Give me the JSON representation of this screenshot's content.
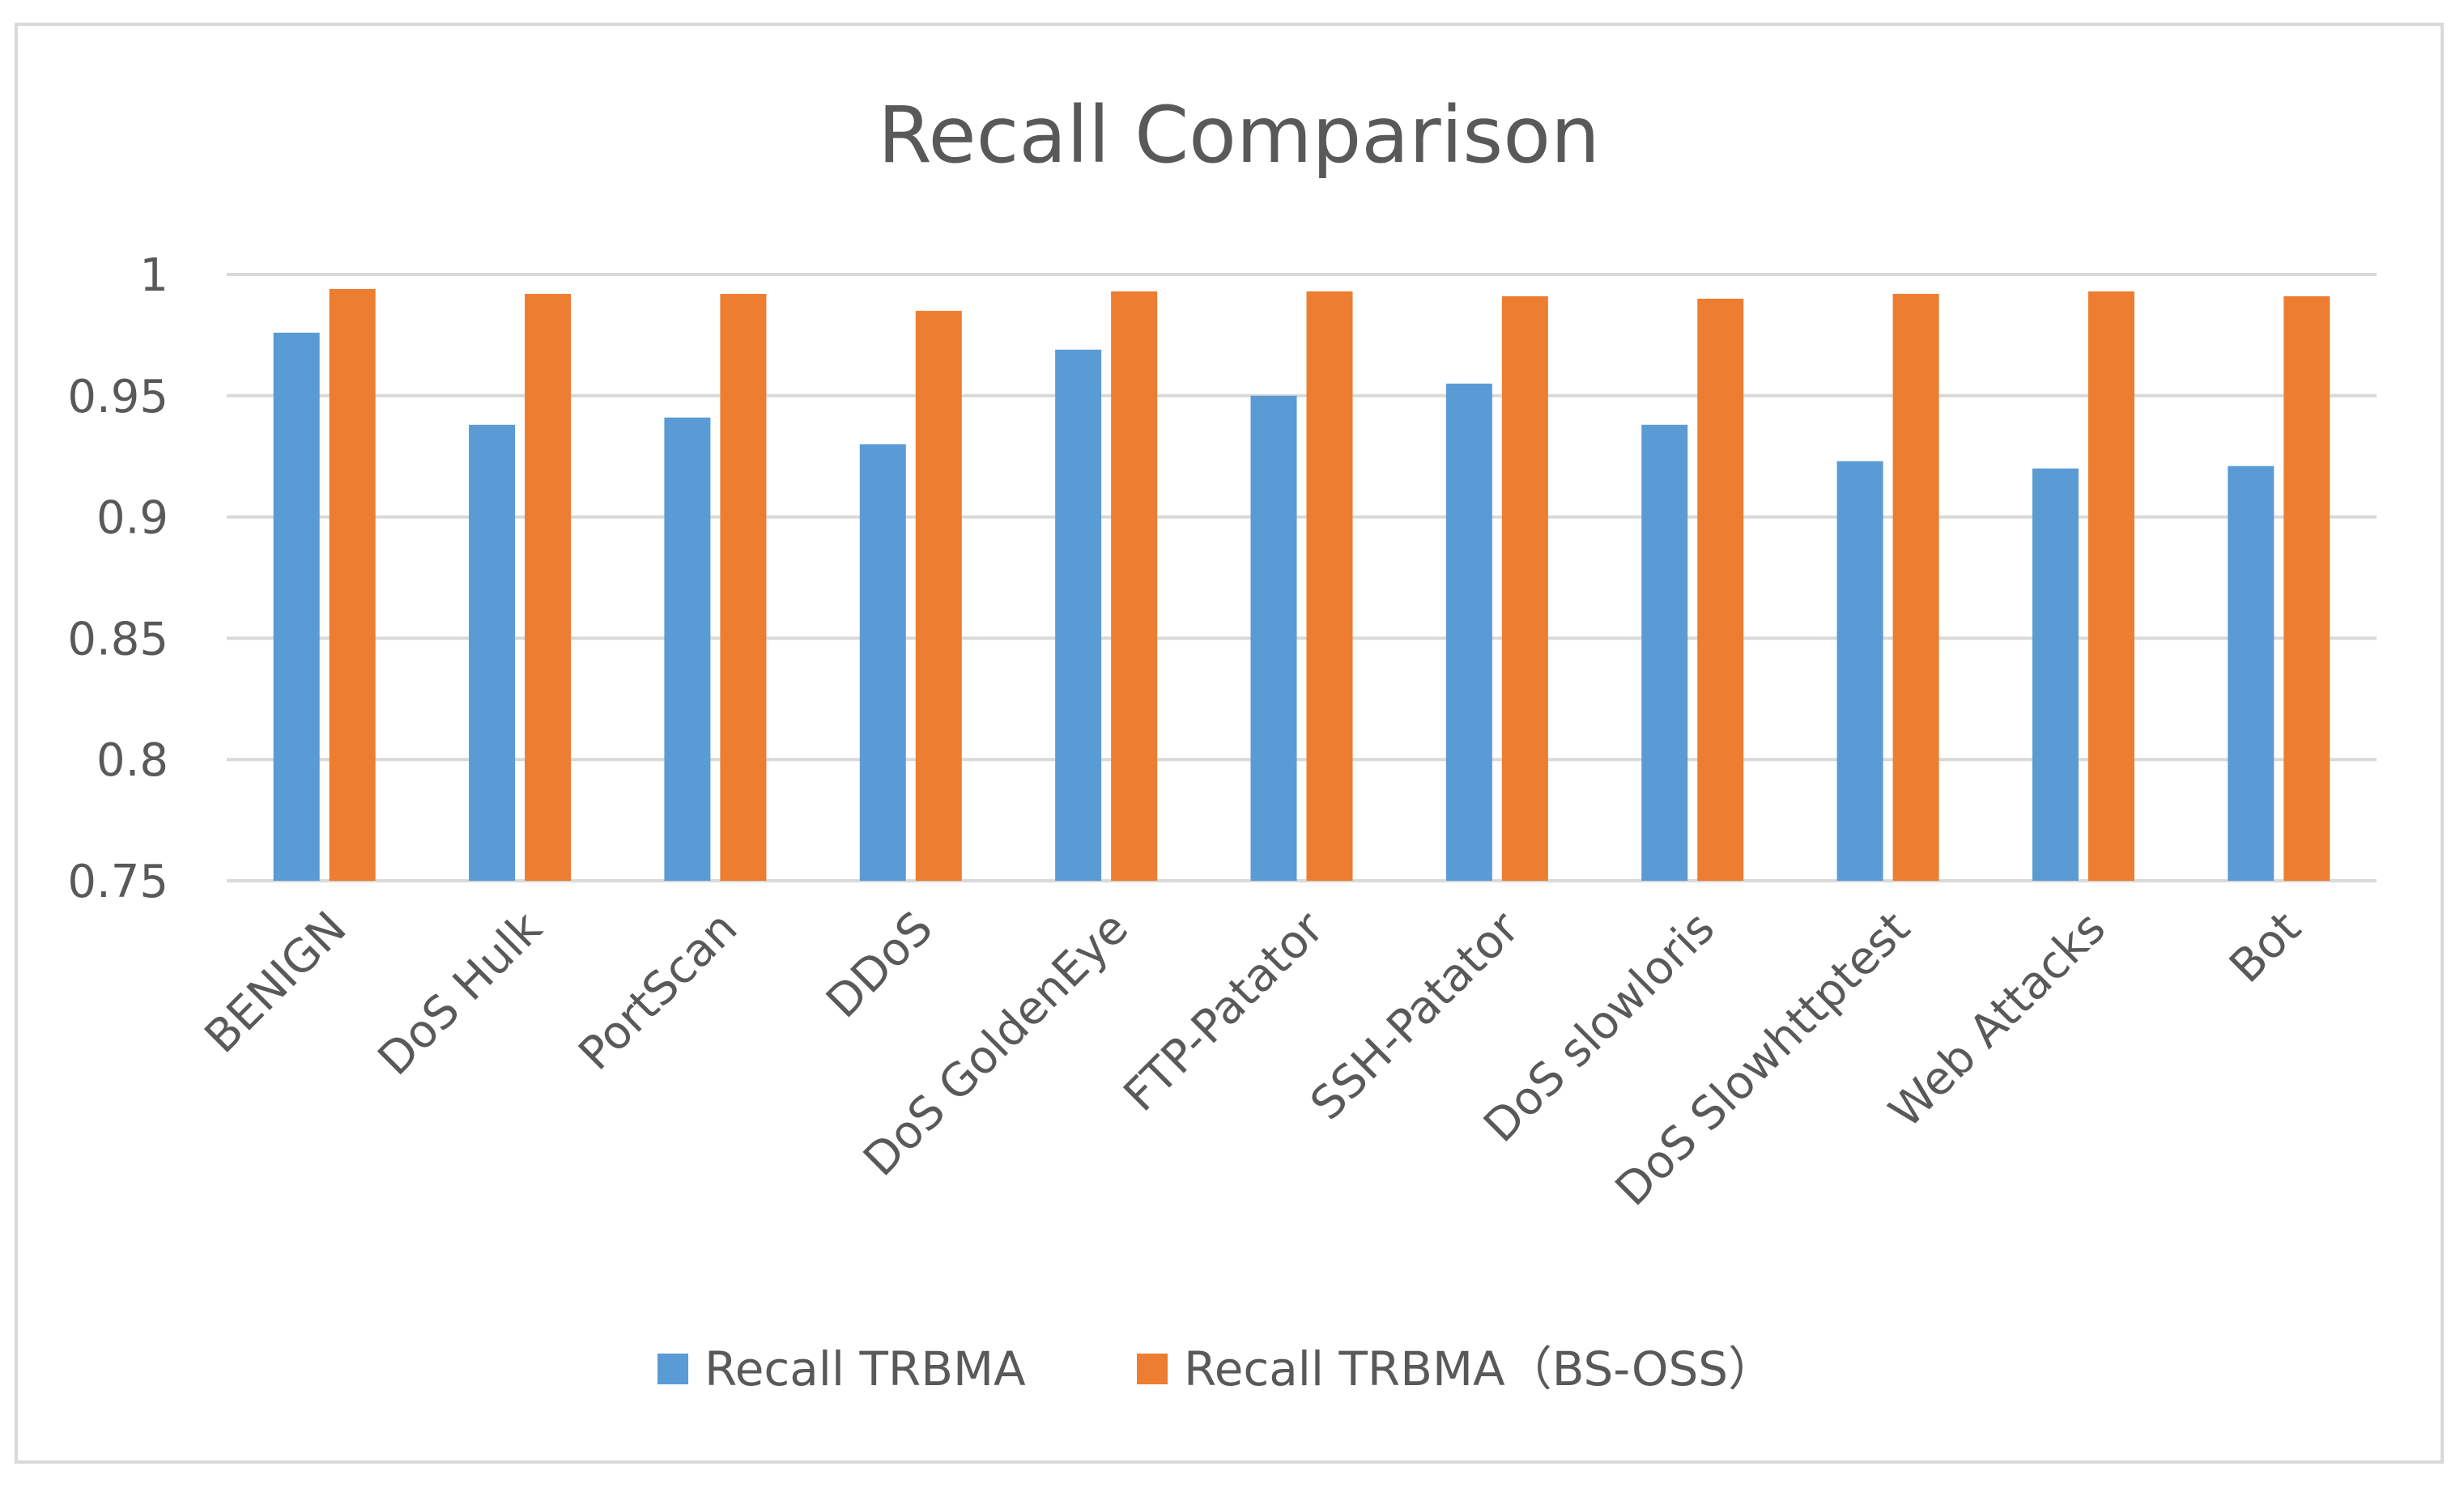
{
  "chart_data": {
    "type": "bar",
    "title": "Recall Comparison",
    "xlabel": "",
    "ylabel": "",
    "ylim": [
      0.75,
      1
    ],
    "yticks": [
      "0.75",
      "0.8",
      "0.85",
      "0.9",
      "0.95",
      "1"
    ],
    "ytick_values": [
      0.75,
      0.8,
      0.85,
      0.9,
      0.95,
      1
    ],
    "grid": true,
    "legend_position": "bottom",
    "categories": [
      "BENIGN",
      "DoS Hulk",
      "PortScan",
      "DDoS",
      "DoS GoldenEye",
      "FTP-Patator",
      "SSH-Patator",
      "DoS slowloris",
      "DoS Slowhttptest",
      "Web Attacks",
      "Bot"
    ],
    "series": [
      {
        "name": "Recall TRBMA",
        "color": "#5b9bd5",
        "values": [
          0.976,
          0.938,
          0.941,
          0.93,
          0.969,
          0.95,
          0.955,
          0.938,
          0.923,
          0.92,
          0.921
        ]
      },
      {
        "name": "Recall TRBMA（BS-OSS）",
        "color": "#ed7d31",
        "values": [
          0.994,
          0.992,
          0.992,
          0.985,
          0.993,
          0.993,
          0.991,
          0.99,
          0.992,
          0.993,
          0.991
        ]
      }
    ]
  }
}
